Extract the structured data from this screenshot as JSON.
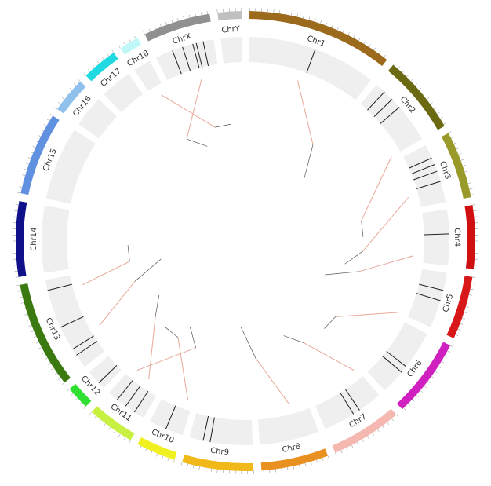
{
  "chromosomes": [
    {
      "label": "Chr1",
      "color": "#9b6a1c"
    },
    {
      "label": "Chr2",
      "color": "#6b6a12"
    },
    {
      "label": "Chr3",
      "color": "#9a9a2a"
    },
    {
      "label": "Chr4",
      "color": "#d01010"
    },
    {
      "label": "Chr5",
      "color": "#d81818"
    },
    {
      "label": "Chr6",
      "color": "#d020c0"
    },
    {
      "label": "Chr7",
      "color": "#f4b8b0"
    },
    {
      "label": "Chr8",
      "color": "#e89020"
    },
    {
      "label": "Chr9",
      "color": "#f0b818"
    },
    {
      "label": "Chr10",
      "color": "#f0f020"
    },
    {
      "label": "Chr11",
      "color": "#c8f040"
    },
    {
      "label": "Chr12",
      "color": "#30e030"
    },
    {
      "label": "Chr13",
      "color": "#3a7a10"
    },
    {
      "label": "Chr14",
      "color": "#10108a"
    },
    {
      "label": "Chr15",
      "color": "#6090e0"
    },
    {
      "label": "Chr16",
      "color": "#90c0ec"
    },
    {
      "label": "Chr17",
      "color": "#20d8e0"
    },
    {
      "label": "Chr18",
      "color": "#c0f8f8"
    },
    {
      "label": "ChrX",
      "color": "#909090"
    },
    {
      "label": "ChrY",
      "color": "#c0c0c0"
    }
  ]
}
